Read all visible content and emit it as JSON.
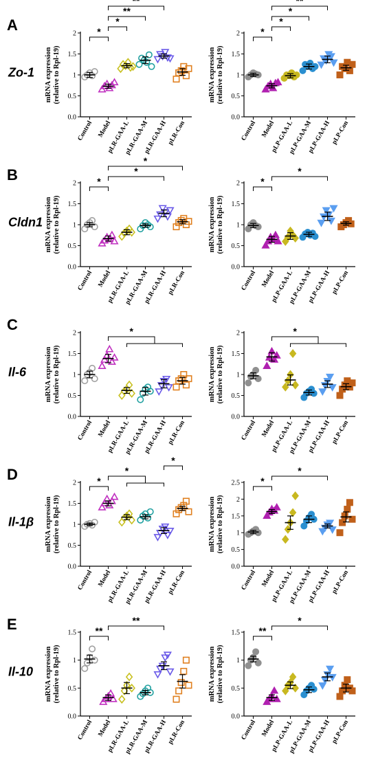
{
  "y_axis_label_line1": "mRNA expression",
  "y_axis_label_line2": "(relative to Rpl-19)",
  "colors": {
    "left": [
      "#a0a0a0",
      "#c030c0",
      "#c8c020",
      "#20a0a0",
      "#6a5ae8",
      "#e08020"
    ],
    "right": [
      "#909090",
      "#b020b0",
      "#c8b820",
      "#2a8fd0",
      "#5a9ef0",
      "#c0601a"
    ]
  },
  "chart_data": [
    {
      "panel": "A",
      "gene": "Zo-1",
      "side": "left",
      "type": "scatter",
      "categories": [
        "Control",
        "Model",
        "pLR-GAA-L",
        "pLR-GAA-M",
        "pLR-GAA-H",
        "pLR-Con"
      ],
      "ylim": [
        0,
        2.0
      ],
      "yticks": [
        0,
        0.5,
        1.0,
        1.5,
        2.0
      ],
      "means": [
        1.0,
        0.73,
        1.22,
        1.35,
        1.45,
        1.07
      ],
      "sem": [
        0.06,
        0.05,
        0.05,
        0.08,
        0.05,
        0.08
      ],
      "points": [
        [
          0.95,
          1.0,
          1.05,
          0.98,
          1.08
        ],
        [
          0.65,
          0.73,
          0.78,
          0.68,
          0.75,
          0.82
        ],
        [
          1.15,
          1.25,
          1.22,
          1.3,
          1.18,
          1.2
        ],
        [
          1.25,
          1.4,
          1.35,
          1.3,
          1.48,
          1.2
        ],
        [
          1.38,
          1.5,
          1.45,
          1.55,
          1.42,
          1.4
        ],
        [
          0.9,
          1.05,
          1.1,
          1.2,
          0.98,
          1.15
        ]
      ],
      "markers": [
        "circle",
        "triangle",
        "diamond",
        "circle",
        "triangle-down",
        "square"
      ],
      "filled": false,
      "sig": [
        {
          "a": 0,
          "b": 1,
          "label": "*"
        },
        {
          "a": 1,
          "b": 2,
          "label": "*"
        },
        {
          "a": 1,
          "b": 3,
          "label": "**"
        },
        {
          "a": 1,
          "b": 4,
          "label": "**"
        },
        {
          "a": 1,
          "b": 5,
          "label": "*"
        }
      ]
    },
    {
      "panel": "A",
      "gene": "Zo-1",
      "side": "right",
      "type": "scatter",
      "categories": [
        "Control",
        "Model",
        "pLP-GAA-L",
        "pLP-GAA-M",
        "pLP-GAA-H",
        "pLP-Con"
      ],
      "ylim": [
        0,
        2.0
      ],
      "yticks": [
        0,
        0.5,
        1.0,
        1.5,
        2.0
      ],
      "means": [
        1.0,
        0.74,
        0.98,
        1.2,
        1.37,
        1.17
      ],
      "sem": [
        0.04,
        0.05,
        0.05,
        0.06,
        0.08,
        0.06
      ],
      "points": [
        [
          0.95,
          1.0,
          1.05,
          1.02,
          1.0
        ],
        [
          0.65,
          0.73,
          0.78,
          0.68,
          0.8,
          0.82
        ],
        [
          0.92,
          1.0,
          0.98,
          1.05,
          0.95,
          1.0
        ],
        [
          1.1,
          1.25,
          1.2,
          1.28,
          1.15,
          1.2
        ],
        [
          1.25,
          1.4,
          1.35,
          1.5,
          1.45,
          1.3
        ],
        [
          1.0,
          1.2,
          1.15,
          1.3,
          1.1,
          1.25
        ]
      ],
      "markers": [
        "circle",
        "triangle",
        "circle",
        "circle",
        "triangle-down",
        "square"
      ],
      "filled": true,
      "sig": [
        {
          "a": 0,
          "b": 1,
          "label": "*"
        },
        {
          "a": 1,
          "b": 2,
          "label": "*"
        },
        {
          "a": 1,
          "b": 3,
          "label": "*"
        },
        {
          "a": 1,
          "b": 4,
          "label": "**"
        },
        {
          "a": 1,
          "b": 5,
          "label": "*"
        }
      ]
    },
    {
      "panel": "B",
      "gene": "Cldn1",
      "side": "left",
      "type": "scatter",
      "categories": [
        "Control",
        "Model",
        "pLR-GAA-L",
        "pLR-GAA-M",
        "pLR-GAA-H",
        "pLR-Con"
      ],
      "ylim": [
        0,
        2.0
      ],
      "yticks": [
        0,
        0.5,
        1.0,
        1.5,
        2.0
      ],
      "means": [
        1.0,
        0.67,
        0.82,
        0.98,
        1.27,
        1.07
      ],
      "sem": [
        0.05,
        0.06,
        0.06,
        0.04,
        0.08,
        0.05
      ],
      "points": [
        [
          0.9,
          1.0,
          1.05,
          1.1,
          0.95
        ],
        [
          0.55,
          0.62,
          0.7,
          0.65,
          0.75,
          0.6
        ],
        [
          0.72,
          0.8,
          0.85,
          0.9,
          0.82
        ],
        [
          0.9,
          0.98,
          1.05,
          1.0,
          0.95
        ],
        [
          1.15,
          1.25,
          1.4,
          1.3,
          1.2,
          1.35
        ],
        [
          0.95,
          1.05,
          1.1,
          1.15,
          1.0,
          1.08
        ]
      ],
      "markers": [
        "circle",
        "triangle",
        "diamond",
        "circle",
        "triangle-down",
        "square"
      ],
      "filled": false,
      "sig": [
        {
          "a": 0,
          "b": 1,
          "label": "*"
        },
        {
          "a": 1,
          "b": 4,
          "label": "*"
        },
        {
          "a": 1,
          "b": 5,
          "label": "*"
        }
      ]
    },
    {
      "panel": "B",
      "gene": "Cldn1",
      "side": "right",
      "type": "scatter",
      "categories": [
        "Control",
        "Model",
        "pLP-GAA-L",
        "pLP-GAA-M",
        "pLP-GAA-H",
        "pLP-Con"
      ],
      "ylim": [
        0,
        2.0
      ],
      "yticks": [
        0,
        0.5,
        1.0,
        1.5,
        2.0
      ],
      "means": [
        0.98,
        0.65,
        0.73,
        0.77,
        1.2,
        1.03
      ],
      "sem": [
        0.05,
        0.07,
        0.08,
        0.05,
        0.1,
        0.04
      ],
      "points": [
        [
          0.9,
          1.0,
          1.05,
          0.98,
          0.95
        ],
        [
          0.5,
          0.6,
          0.7,
          0.65,
          0.75,
          0.6
        ],
        [
          0.6,
          0.7,
          0.85,
          0.75,
          0.68
        ],
        [
          0.7,
          0.78,
          0.82,
          0.75,
          0.8,
          0.72
        ],
        [
          1.05,
          1.2,
          1.35,
          1.25,
          1.1,
          1.4
        ],
        [
          0.95,
          1.0,
          1.05,
          1.1,
          1.02
        ]
      ],
      "markers": [
        "circle",
        "triangle",
        "diamond",
        "circle",
        "triangle-down",
        "square"
      ],
      "filled": true,
      "sig": [
        {
          "a": 0,
          "b": 1,
          "label": "*"
        },
        {
          "a": 1,
          "b": 4,
          "label": "*"
        }
      ]
    },
    {
      "panel": "C",
      "gene": "Il-6",
      "side": "left",
      "type": "scatter",
      "categories": [
        "Control",
        "Model",
        "pLR-GAA-L",
        "pLR-GAA-M",
        "pLR-GAA-H",
        "pLR-Con"
      ],
      "ylim": [
        0,
        2.0
      ],
      "yticks": [
        0,
        0.5,
        1.0,
        1.5,
        2.0
      ],
      "means": [
        1.0,
        1.38,
        0.62,
        0.6,
        0.78,
        0.85
      ],
      "sem": [
        0.08,
        0.1,
        0.07,
        0.09,
        0.1,
        0.08
      ],
      "points": [
        [
          0.85,
          1.0,
          1.05,
          1.15,
          0.9
        ],
        [
          1.2,
          1.35,
          1.45,
          1.6,
          1.3,
          1.4
        ],
        [
          0.5,
          0.6,
          0.65,
          0.75,
          0.55
        ],
        [
          0.4,
          0.55,
          0.65,
          0.7,
          0.6
        ],
        [
          0.6,
          0.75,
          0.85,
          0.9,
          0.7
        ],
        [
          0.7,
          0.85,
          0.9,
          1.0,
          0.75,
          0.9
        ]
      ],
      "markers": [
        "circle",
        "triangle",
        "diamond",
        "circle",
        "triangle-down",
        "square"
      ],
      "filled": false,
      "sig": [
        {
          "a": 1,
          "b": [
            2,
            3,
            4,
            5
          ],
          "label": "*"
        }
      ]
    },
    {
      "panel": "C",
      "gene": "Il-6",
      "side": "right",
      "type": "scatter",
      "categories": [
        "Control",
        "Model",
        "pLP-GAA-L",
        "pLP-GAA-M",
        "pLP-GAA-H",
        "pLP-Con"
      ],
      "ylim": [
        0,
        2.0
      ],
      "yticks": [
        0,
        0.5,
        1.0,
        1.5,
        2.0
      ],
      "means": [
        0.97,
        1.42,
        0.87,
        0.57,
        0.77,
        0.71
      ],
      "sem": [
        0.07,
        0.1,
        0.12,
        0.06,
        0.08,
        0.07
      ],
      "points": [
        [
          0.8,
          0.95,
          1.0,
          1.1,
          0.9
        ],
        [
          1.2,
          1.4,
          1.55,
          1.35,
          1.45
        ],
        [
          0.7,
          0.85,
          1.0,
          1.5,
          0.75
        ],
        [
          0.45,
          0.55,
          0.6,
          0.65,
          0.55
        ],
        [
          0.6,
          0.75,
          0.85,
          0.95,
          0.7
        ],
        [
          0.5,
          0.65,
          0.75,
          0.85,
          0.7,
          0.8
        ]
      ],
      "markers": [
        "circle",
        "triangle",
        "diamond",
        "circle",
        "triangle-down",
        "square"
      ],
      "filled": true,
      "sig": [
        {
          "a": 1,
          "b": [
            2,
            3,
            4,
            5
          ],
          "label": "*"
        }
      ]
    },
    {
      "panel": "D",
      "gene": "Il-1β",
      "side": "left",
      "type": "scatter",
      "categories": [
        "Control",
        "Model",
        "pLR-GAA-L",
        "pLR-GAA-M",
        "pLR-GAA-H",
        "pLR-Con"
      ],
      "ylim": [
        0,
        2.0
      ],
      "yticks": [
        0,
        0.5,
        1.0,
        1.5,
        2.0
      ],
      "means": [
        1.0,
        1.5,
        1.17,
        1.18,
        0.85,
        1.38
      ],
      "sem": [
        0.03,
        0.06,
        0.06,
        0.05,
        0.07,
        0.05
      ],
      "points": [
        [
          0.95,
          1.0,
          1.02,
          0.98,
          1.05
        ],
        [
          1.4,
          1.5,
          1.6,
          1.45,
          1.55,
          1.65
        ],
        [
          1.05,
          1.15,
          1.2,
          1.25,
          1.1
        ],
        [
          1.1,
          1.2,
          1.25,
          1.15,
          1.3
        ],
        [
          0.7,
          0.8,
          0.9,
          0.95,
          0.75,
          0.85
        ],
        [
          1.25,
          1.35,
          1.4,
          1.45,
          1.55,
          1.3
        ]
      ],
      "markers": [
        "circle",
        "triangle",
        "diamond",
        "circle",
        "triangle-down",
        "square"
      ],
      "filled": false,
      "sig": [
        {
          "a": 0,
          "b": 1,
          "label": "*"
        },
        {
          "a": 1,
          "b": [
            2,
            3,
            4
          ],
          "label": "*"
        },
        {
          "a": 4,
          "b": 5,
          "label": "*"
        }
      ]
    },
    {
      "panel": "D",
      "gene": "Il-1β",
      "side": "right",
      "type": "scatter",
      "categories": [
        "Control",
        "Model",
        "pLP-GAA-L",
        "pLP-GAA-M",
        "pLP-GAA-H",
        "pLP-Con"
      ],
      "ylim": [
        0,
        2.5
      ],
      "yticks": [
        0,
        0.5,
        1.0,
        1.5,
        2.0,
        2.5
      ],
      "means": [
        1.02,
        1.63,
        1.3,
        1.4,
        1.2,
        1.47
      ],
      "sem": [
        0.05,
        0.06,
        0.2,
        0.1,
        0.06,
        0.15
      ],
      "points": [
        [
          0.95,
          1.0,
          1.05,
          1.1,
          1.0
        ],
        [
          1.5,
          1.6,
          1.7,
          1.65,
          1.75
        ],
        [
          0.8,
          1.1,
          1.3,
          1.6,
          2.1
        ],
        [
          1.2,
          1.35,
          1.45,
          1.55,
          1.4
        ],
        [
          1.05,
          1.15,
          1.25,
          1.3,
          1.1
        ],
        [
          1.0,
          1.3,
          1.5,
          1.7,
          1.9,
          1.4
        ]
      ],
      "markers": [
        "circle",
        "triangle",
        "diamond",
        "circle",
        "triangle-down",
        "square"
      ],
      "filled": true,
      "sig": [
        {
          "a": 0,
          "b": 1,
          "label": "*"
        },
        {
          "a": 1,
          "b": 4,
          "label": "*"
        }
      ]
    },
    {
      "panel": "E",
      "gene": "Il-10",
      "side": "left",
      "type": "scatter",
      "categories": [
        "Control",
        "Model",
        "pLR-GAA-L",
        "pLR-GAA-M",
        "pLR-GAA-H",
        "pLR-Con"
      ],
      "ylim": [
        0,
        1.5
      ],
      "yticks": [
        0,
        0.5,
        1.0,
        1.5
      ],
      "means": [
        1.02,
        0.33,
        0.5,
        0.42,
        0.9,
        0.62
      ],
      "sem": [
        0.07,
        0.05,
        0.1,
        0.04,
        0.07,
        0.12
      ],
      "points": [
        [
          0.85,
          0.95,
          1.05,
          1.2,
          1.0
        ],
        [
          0.25,
          0.3,
          0.35,
          0.4,
          0.3
        ],
        [
          0.3,
          0.45,
          0.55,
          0.7,
          0.5
        ],
        [
          0.35,
          0.4,
          0.45,
          0.5,
          0.42
        ],
        [
          0.75,
          0.85,
          0.9,
          1.05,
          1.1,
          0.8
        ],
        [
          0.3,
          0.45,
          0.6,
          0.8,
          1.0,
          0.55
        ]
      ],
      "markers": [
        "circle",
        "triangle",
        "diamond",
        "circle",
        "triangle-down",
        "square"
      ],
      "filled": false,
      "sig": [
        {
          "a": 0,
          "b": 1,
          "label": "**"
        },
        {
          "a": 1,
          "b": 4,
          "label": "**"
        }
      ]
    },
    {
      "panel": "E",
      "gene": "Il-10",
      "side": "right",
      "type": "scatter",
      "categories": [
        "Control",
        "Model",
        "pLP-GAA-L",
        "pLP-GAA-M",
        "pLP-GAA-H",
        "pLP-Con"
      ],
      "ylim": [
        0,
        1.5
      ],
      "yticks": [
        0,
        0.5,
        1.0,
        1.5
      ],
      "means": [
        1.02,
        0.33,
        0.55,
        0.47,
        0.7,
        0.5
      ],
      "sem": [
        0.05,
        0.05,
        0.06,
        0.05,
        0.07,
        0.07
      ],
      "points": [
        [
          0.9,
          1.0,
          1.05,
          1.15,
          0.95
        ],
        [
          0.25,
          0.3,
          0.35,
          0.45,
          0.3
        ],
        [
          0.45,
          0.55,
          0.6,
          0.7,
          0.5
        ],
        [
          0.38,
          0.45,
          0.5,
          0.55,
          0.48
        ],
        [
          0.55,
          0.65,
          0.75,
          0.85,
          0.7
        ],
        [
          0.35,
          0.45,
          0.55,
          0.65,
          0.5,
          0.45
        ]
      ],
      "markers": [
        "circle",
        "triangle",
        "diamond",
        "circle",
        "triangle-down",
        "square"
      ],
      "filled": true,
      "sig": [
        {
          "a": 0,
          "b": 1,
          "label": "**"
        },
        {
          "a": 1,
          "b": 4,
          "label": "*"
        }
      ]
    }
  ]
}
